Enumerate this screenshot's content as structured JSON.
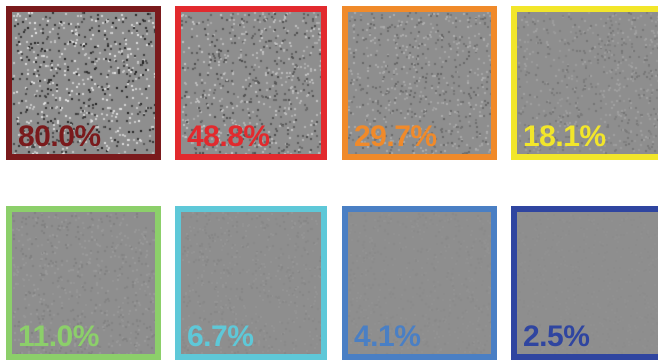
{
  "panels": [
    {
      "label": "80.0%",
      "color": "#7a1a1c",
      "contrast": 0.8
    },
    {
      "label": "48.8%",
      "color": "#e22a2e",
      "contrast": 0.488
    },
    {
      "label": "29.7%",
      "color": "#f08a2a",
      "contrast": 0.297
    },
    {
      "label": "18.1%",
      "color": "#f2e62a",
      "contrast": 0.181
    },
    {
      "label": "11.0%",
      "color": "#8ccf6a",
      "contrast": 0.11
    },
    {
      "label": "6.7%",
      "color": "#5ec8d8",
      "contrast": 0.067
    },
    {
      "label": "4.1%",
      "color": "#4a7fc4",
      "contrast": 0.041
    },
    {
      "label": "2.5%",
      "color": "#2f45a0",
      "contrast": 0.025
    }
  ],
  "background_gray": "#8e8e8e"
}
